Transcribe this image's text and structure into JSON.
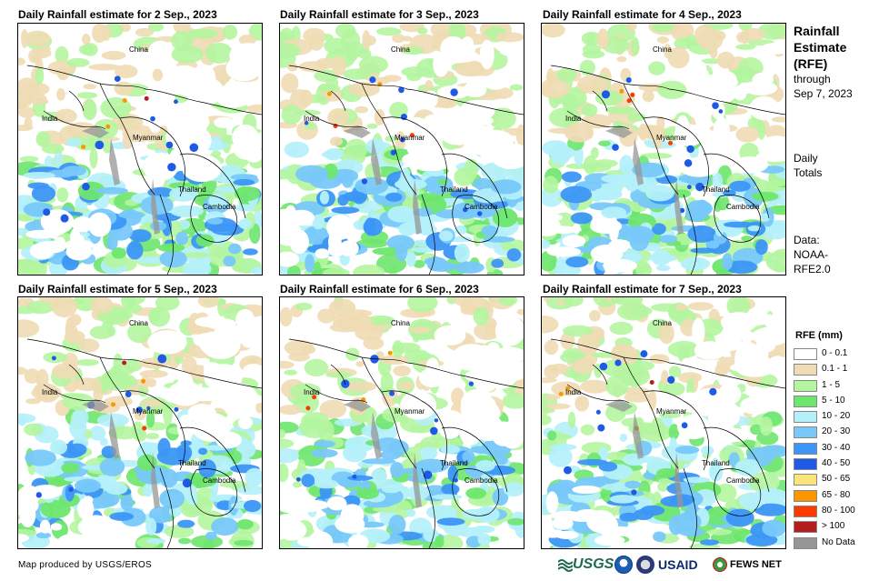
{
  "panels": [
    {
      "title": "Daily Rainfall estimate for 2 Sep., 2023"
    },
    {
      "title": "Daily Rainfall estimate for 3 Sep., 2023"
    },
    {
      "title": "Daily Rainfall estimate for 4 Sep., 2023"
    },
    {
      "title": "Daily Rainfall estimate for 5 Sep., 2023"
    },
    {
      "title": "Daily Rainfall estimate for 6 Sep., 2023"
    },
    {
      "title": "Daily Rainfall estimate for 7 Sep., 2023"
    }
  ],
  "labels": {
    "china": "China",
    "india": "India",
    "myanmar": "Myanmar",
    "thailand": "Thailand",
    "cambodia": "Cambodia"
  },
  "side": {
    "title_line1": "Rainfall",
    "title_line2": "Estimate",
    "title_line3": "(RFE)",
    "through": "through",
    "date": "Sep 7, 2023",
    "daily_line1": "Daily",
    "daily_line2": "Totals",
    "data_line1": "Data:",
    "data_line2": "NOAA-",
    "data_line3": "RFE2.0"
  },
  "legend": {
    "title": "RFE (mm)",
    "items": [
      {
        "label": "0 - 0.1",
        "color": "#ffffff"
      },
      {
        "label": "0.1 - 1",
        "color": "#f0dcb4"
      },
      {
        "label": "1 - 5",
        "color": "#b4f5a0"
      },
      {
        "label": "5 - 10",
        "color": "#6ee66e"
      },
      {
        "label": "10 - 20",
        "color": "#b4f0fa"
      },
      {
        "label": "20 - 30",
        "color": "#78c8fa"
      },
      {
        "label": "30 - 40",
        "color": "#3c96f5"
      },
      {
        "label": "40 - 50",
        "color": "#1e5ae6"
      },
      {
        "label": "50 - 65",
        "color": "#fae678"
      },
      {
        "label": "65 - 80",
        "color": "#fa9600"
      },
      {
        "label": "80 - 100",
        "color": "#fa3c00"
      },
      {
        "label": "> 100",
        "color": "#b41e1e"
      },
      {
        "label": "No Data",
        "color": "#969696"
      }
    ]
  },
  "footer": {
    "credit": "Map produced by USGS/EROS",
    "usgs": "USGS",
    "usaid": "USAID",
    "fews": "FEWS NET"
  }
}
